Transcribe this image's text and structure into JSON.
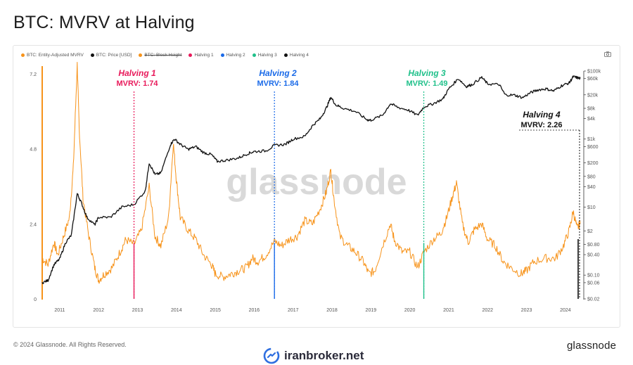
{
  "page": {
    "title": "BTC: MVRV at Halving",
    "copyright": "© 2024 Glassnode. All Rights Reserved.",
    "brand": "glassnode",
    "watermark": "glassnode",
    "iranbroker": "iranbroker.net"
  },
  "legend": [
    {
      "label": "BTC: Entity-Adjusted MVRV",
      "color": "#f7931a",
      "struck": false
    },
    {
      "label": "BTC: Price [USD]",
      "color": "#111111",
      "struck": false
    },
    {
      "label": "BTC: Block Height",
      "color": "#f7931a",
      "struck": true
    },
    {
      "label": "Halving 1",
      "color": "#e8195a",
      "struck": false
    },
    {
      "label": "Halving 2",
      "color": "#1a6ae8",
      "struck": false
    },
    {
      "label": "Halving 3",
      "color": "#1fc08a",
      "struck": false
    },
    {
      "label": "Halving 4",
      "color": "#111111",
      "struck": false
    }
  ],
  "halvings": [
    {
      "name": "Halving 1",
      "mvrv_text": "MVRV: 1.74",
      "date": 2012.91,
      "color": "#e8195a"
    },
    {
      "name": "Halving 2",
      "mvrv_text": "MVRV: 1.84",
      "date": 2016.52,
      "color": "#1a6ae8"
    },
    {
      "name": "Halving 3",
      "mvrv_text": "MVRV: 1.49",
      "date": 2020.36,
      "color": "#1fc08a"
    },
    {
      "name": "Halving 4",
      "mvrv_text": "MVRV: 2.26",
      "date": 2024.3,
      "color": "#111111"
    }
  ],
  "chart_data": {
    "type": "line",
    "title": "BTC: MVRV at Halving",
    "x_axis": {
      "type": "date",
      "range": [
        2010.55,
        2024.4
      ],
      "ticks": [
        "2011",
        "2012",
        "2013",
        "2014",
        "2015",
        "2016",
        "2017",
        "2018",
        "2019",
        "2020",
        "2021",
        "2022",
        "2023",
        "2024"
      ]
    },
    "y_left": {
      "label": "",
      "range": [
        0,
        7.4
      ],
      "ticks": [
        "0",
        "2.4",
        "4.8",
        "7.2"
      ]
    },
    "y_right": {
      "label": "",
      "scale": "log",
      "range": [
        0.02,
        100000
      ],
      "ticks": [
        "$100k",
        "$60k",
        "$20k",
        "$8k",
        "$4k",
        "$1k",
        "$600",
        "$200",
        "$80",
        "$40",
        "$10",
        "$2",
        "$0.80",
        "$0.40",
        "$0.10",
        "$0.06",
        "$0.02"
      ]
    },
    "grid": false,
    "legend_position": "top-left",
    "series": [
      {
        "name": "BTC: Entity-Adjusted MVRV",
        "color": "#f7931a",
        "axis": "left",
        "points": [
          [
            2010.55,
            1.3
          ],
          [
            2010.7,
            1.1
          ],
          [
            2010.85,
            1.8
          ],
          [
            2010.95,
            1.4
          ],
          [
            2011.1,
            2.0
          ],
          [
            2011.25,
            2.6
          ],
          [
            2011.35,
            4.2
          ],
          [
            2011.45,
            7.5
          ],
          [
            2011.5,
            5.5
          ],
          [
            2011.6,
            3.2
          ],
          [
            2011.75,
            2.0
          ],
          [
            2011.9,
            1.0
          ],
          [
            2012.0,
            0.6
          ],
          [
            2012.15,
            0.8
          ],
          [
            2012.35,
            1.0
          ],
          [
            2012.55,
            1.5
          ],
          [
            2012.7,
            1.9
          ],
          [
            2012.91,
            1.74
          ],
          [
            2013.1,
            2.2
          ],
          [
            2013.3,
            3.6
          ],
          [
            2013.45,
            2.0
          ],
          [
            2013.6,
            1.7
          ],
          [
            2013.8,
            2.6
          ],
          [
            2013.92,
            5.0
          ],
          [
            2014.0,
            3.8
          ],
          [
            2014.1,
            2.6
          ],
          [
            2014.3,
            2.2
          ],
          [
            2014.5,
            1.9
          ],
          [
            2014.7,
            1.4
          ],
          [
            2014.9,
            1.1
          ],
          [
            2015.0,
            0.8
          ],
          [
            2015.2,
            0.7
          ],
          [
            2015.4,
            0.8
          ],
          [
            2015.6,
            0.9
          ],
          [
            2015.8,
            1.0
          ],
          [
            2015.95,
            1.3
          ],
          [
            2016.1,
            1.2
          ],
          [
            2016.3,
            1.4
          ],
          [
            2016.52,
            1.84
          ],
          [
            2016.7,
            1.7
          ],
          [
            2016.9,
            1.9
          ],
          [
            2017.1,
            2.0
          ],
          [
            2017.3,
            2.5
          ],
          [
            2017.5,
            2.4
          ],
          [
            2017.7,
            2.9
          ],
          [
            2017.85,
            3.4
          ],
          [
            2017.97,
            4.1
          ],
          [
            2018.05,
            3.2
          ],
          [
            2018.2,
            2.0
          ],
          [
            2018.4,
            1.7
          ],
          [
            2018.6,
            1.5
          ],
          [
            2018.8,
            1.2
          ],
          [
            2018.95,
            0.8
          ],
          [
            2019.1,
            0.9
          ],
          [
            2019.3,
            1.7
          ],
          [
            2019.5,
            2.4
          ],
          [
            2019.6,
            1.9
          ],
          [
            2019.8,
            1.5
          ],
          [
            2020.0,
            1.5
          ],
          [
            2020.2,
            1.0
          ],
          [
            2020.36,
            1.49
          ],
          [
            2020.6,
            1.9
          ],
          [
            2020.8,
            2.1
          ],
          [
            2020.95,
            2.6
          ],
          [
            2021.1,
            3.3
          ],
          [
            2021.2,
            3.7
          ],
          [
            2021.35,
            2.4
          ],
          [
            2021.5,
            1.8
          ],
          [
            2021.65,
            2.2
          ],
          [
            2021.85,
            2.4
          ],
          [
            2022.0,
            1.9
          ],
          [
            2022.2,
            1.7
          ],
          [
            2022.4,
            1.2
          ],
          [
            2022.6,
            1.0
          ],
          [
            2022.85,
            0.8
          ],
          [
            2023.0,
            0.9
          ],
          [
            2023.2,
            1.2
          ],
          [
            2023.5,
            1.3
          ],
          [
            2023.75,
            1.3
          ],
          [
            2023.95,
            1.7
          ],
          [
            2024.1,
            2.2
          ],
          [
            2024.2,
            2.8
          ],
          [
            2024.3,
            2.26
          ],
          [
            2024.38,
            2.4
          ]
        ]
      },
      {
        "name": "BTC: Price [USD]",
        "color": "#111111",
        "axis": "right",
        "points": [
          [
            2010.55,
            0.06
          ],
          [
            2010.7,
            0.07
          ],
          [
            2010.85,
            0.2
          ],
          [
            2011.0,
            0.3
          ],
          [
            2011.15,
            0.9
          ],
          [
            2011.3,
            1.5
          ],
          [
            2011.45,
            25
          ],
          [
            2011.55,
            14
          ],
          [
            2011.7,
            5
          ],
          [
            2011.9,
            3
          ],
          [
            2012.0,
            5
          ],
          [
            2012.3,
            5
          ],
          [
            2012.6,
            10
          ],
          [
            2012.91,
            12
          ],
          [
            2013.2,
            30
          ],
          [
            2013.3,
            200
          ],
          [
            2013.45,
            90
          ],
          [
            2013.6,
            100
          ],
          [
            2013.85,
            700
          ],
          [
            2013.95,
            1000
          ],
          [
            2014.1,
            700
          ],
          [
            2014.3,
            500
          ],
          [
            2014.5,
            600
          ],
          [
            2014.7,
            400
          ],
          [
            2014.9,
            350
          ],
          [
            2015.05,
            220
          ],
          [
            2015.3,
            240
          ],
          [
            2015.6,
            280
          ],
          [
            2015.85,
            380
          ],
          [
            2016.0,
            430
          ],
          [
            2016.3,
            450
          ],
          [
            2016.52,
            650
          ],
          [
            2016.8,
            700
          ],
          [
            2017.0,
            1000
          ],
          [
            2017.3,
            1200
          ],
          [
            2017.5,
            2500
          ],
          [
            2017.7,
            4000
          ],
          [
            2017.85,
            8000
          ],
          [
            2017.97,
            17000
          ],
          [
            2018.1,
            10000
          ],
          [
            2018.3,
            8000
          ],
          [
            2018.6,
            6500
          ],
          [
            2018.9,
            3700
          ],
          [
            2019.0,
            3600
          ],
          [
            2019.3,
            5000
          ],
          [
            2019.5,
            11000
          ],
          [
            2019.7,
            8500
          ],
          [
            2019.95,
            7200
          ],
          [
            2020.2,
            5000
          ],
          [
            2020.36,
            8800
          ],
          [
            2020.6,
            11000
          ],
          [
            2020.85,
            15000
          ],
          [
            2021.0,
            30000
          ],
          [
            2021.25,
            60000
          ],
          [
            2021.45,
            35000
          ],
          [
            2021.6,
            40000
          ],
          [
            2021.85,
            65000
          ],
          [
            2022.0,
            42000
          ],
          [
            2022.3,
            40000
          ],
          [
            2022.45,
            20000
          ],
          [
            2022.7,
            19500
          ],
          [
            2022.9,
            16500
          ],
          [
            2023.1,
            23000
          ],
          [
            2023.3,
            28000
          ],
          [
            2023.5,
            30000
          ],
          [
            2023.7,
            26000
          ],
          [
            2023.9,
            37000
          ],
          [
            2024.1,
            45000
          ],
          [
            2024.2,
            68000
          ],
          [
            2024.3,
            64000
          ],
          [
            2024.38,
            60000
          ]
        ]
      }
    ]
  }
}
